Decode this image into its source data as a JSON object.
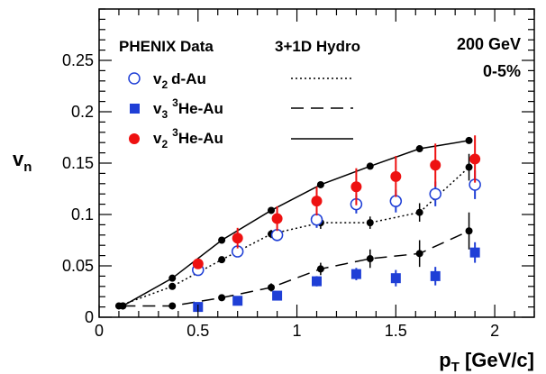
{
  "chart_data": {
    "type": "scatter",
    "title": "",
    "xlabel": "p",
    "xlabel_sub": "T",
    "xlabel_unit": " [GeV/c]",
    "ylabel": "v",
    "ylabel_sub": "n",
    "xlim": [
      0,
      2.2
    ],
    "ylim": [
      0,
      0.3
    ],
    "x_ticks": [
      {
        "value": 0,
        "label": "0"
      },
      {
        "value": 0.5,
        "label": "0.5"
      },
      {
        "value": 1,
        "label": "1"
      },
      {
        "value": 1.5,
        "label": "1.5"
      },
      {
        "value": 2,
        "label": "2"
      }
    ],
    "y_ticks": [
      {
        "value": 0,
        "label": "0"
      },
      {
        "value": 0.05,
        "label": "0.05"
      },
      {
        "value": 0.1,
        "label": "0.1"
      },
      {
        "value": 0.15,
        "label": "0.15"
      },
      {
        "value": 0.2,
        "label": "0.2"
      },
      {
        "value": 0.25,
        "label": "0.25"
      }
    ],
    "legend": {
      "placement": "top-left",
      "data_header": "PHENIX Data",
      "hydro_header": "3+1D Hydro"
    },
    "annotations": {
      "energy": "200 GeV",
      "centrality": "0-5%"
    },
    "data_series": [
      {
        "label_v": "v",
        "label_sub": "2",
        "label_sup": "",
        "label_system": "d-Au",
        "marker": "open-circle",
        "color": "#1f3fd6",
        "points": [
          {
            "x": 0.5,
            "y": 0.046,
            "err": 0.004
          },
          {
            "x": 0.7,
            "y": 0.064,
            "err": 0.005
          },
          {
            "x": 0.9,
            "y": 0.08,
            "err": 0.006
          },
          {
            "x": 1.1,
            "y": 0.095,
            "err": 0.008
          },
          {
            "x": 1.3,
            "y": 0.11,
            "err": 0.009
          },
          {
            "x": 1.5,
            "y": 0.113,
            "err": 0.011
          },
          {
            "x": 1.7,
            "y": 0.12,
            "err": 0.012
          },
          {
            "x": 1.9,
            "y": 0.129,
            "err": 0.014
          }
        ]
      },
      {
        "label_v": "v",
        "label_sub": "3",
        "label_sup": "3",
        "label_system": "He-Au",
        "marker": "filled-square",
        "color": "#1f3fd6",
        "points": [
          {
            "x": 0.5,
            "y": 0.01,
            "err": 0.003
          },
          {
            "x": 0.7,
            "y": 0.016,
            "err": 0.004
          },
          {
            "x": 0.9,
            "y": 0.021,
            "err": 0.004
          },
          {
            "x": 1.1,
            "y": 0.035,
            "err": 0.005
          },
          {
            "x": 1.3,
            "y": 0.042,
            "err": 0.006
          },
          {
            "x": 1.5,
            "y": 0.038,
            "err": 0.008
          },
          {
            "x": 1.7,
            "y": 0.04,
            "err": 0.009
          },
          {
            "x": 1.9,
            "y": 0.063,
            "err": 0.01
          }
        ]
      },
      {
        "label_v": "v",
        "label_sub": "2",
        "label_sup": "3",
        "label_system": "He-Au",
        "marker": "filled-circle",
        "color": "#ee1111",
        "points": [
          {
            "x": 0.5,
            "y": 0.052,
            "err": 0.005
          },
          {
            "x": 0.7,
            "y": 0.077,
            "err": 0.01
          },
          {
            "x": 0.9,
            "y": 0.096,
            "err": 0.012
          },
          {
            "x": 1.1,
            "y": 0.113,
            "err": 0.014
          },
          {
            "x": 1.3,
            "y": 0.127,
            "err": 0.018
          },
          {
            "x": 1.5,
            "y": 0.137,
            "err": 0.02
          },
          {
            "x": 1.7,
            "y": 0.148,
            "err": 0.021
          },
          {
            "x": 1.9,
            "y": 0.154,
            "err": 0.023
          }
        ]
      }
    ],
    "hydro_curves": [
      {
        "style": "dotted",
        "points": [
          {
            "x": 0.1,
            "y": 0.011,
            "err": 0.0
          },
          {
            "x": 0.37,
            "y": 0.03,
            "err": 0.002
          },
          {
            "x": 0.62,
            "y": 0.056,
            "err": 0.003
          },
          {
            "x": 0.87,
            "y": 0.081,
            "err": 0.004
          },
          {
            "x": 1.12,
            "y": 0.092,
            "err": 0.006
          },
          {
            "x": 1.37,
            "y": 0.092,
            "err": 0.006
          },
          {
            "x": 1.62,
            "y": 0.102,
            "err": 0.009
          },
          {
            "x": 1.87,
            "y": 0.146,
            "err": 0.013
          }
        ]
      },
      {
        "style": "long-dash",
        "points": [
          {
            "x": 0.12,
            "y": 0.011,
            "err": 0.0
          },
          {
            "x": 0.37,
            "y": 0.011,
            "err": 0.001
          },
          {
            "x": 0.62,
            "y": 0.019,
            "err": 0.002
          },
          {
            "x": 0.87,
            "y": 0.029,
            "err": 0.004
          },
          {
            "x": 1.12,
            "y": 0.047,
            "err": 0.006
          },
          {
            "x": 1.37,
            "y": 0.057,
            "err": 0.009
          },
          {
            "x": 1.62,
            "y": 0.062,
            "err": 0.013
          },
          {
            "x": 1.87,
            "y": 0.084,
            "err": 0.018
          }
        ]
      },
      {
        "style": "solid",
        "points": [
          {
            "x": 0.12,
            "y": 0.011,
            "err": 0.0
          },
          {
            "x": 0.37,
            "y": 0.038,
            "err": 0.002
          },
          {
            "x": 0.62,
            "y": 0.075,
            "err": 0.003
          },
          {
            "x": 0.87,
            "y": 0.104,
            "err": 0.003
          },
          {
            "x": 1.12,
            "y": 0.129,
            "err": 0.003
          },
          {
            "x": 1.37,
            "y": 0.147,
            "err": 0.003
          },
          {
            "x": 1.62,
            "y": 0.164,
            "err": 0.003
          },
          {
            "x": 1.87,
            "y": 0.172,
            "err": 0.003
          }
        ]
      }
    ],
    "grid": false
  }
}
